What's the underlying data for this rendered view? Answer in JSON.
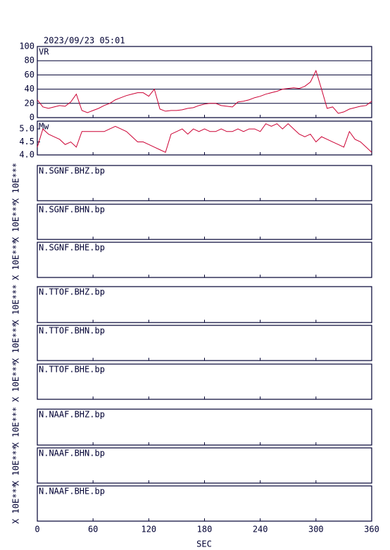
{
  "chart_data": {
    "type": "line",
    "title": "2023/09/23 05:01",
    "xlabel": "SEC",
    "color": "#cc0033",
    "xlim": [
      0,
      360
    ],
    "xticks": [
      0,
      60,
      120,
      180,
      240,
      300,
      360
    ],
    "x": [
      0,
      6,
      12,
      18,
      24,
      30,
      36,
      42,
      48,
      54,
      60,
      66,
      72,
      78,
      84,
      90,
      96,
      102,
      108,
      114,
      120,
      126,
      132,
      138,
      144,
      150,
      156,
      162,
      168,
      174,
      180,
      186,
      192,
      198,
      204,
      210,
      216,
      222,
      228,
      234,
      240,
      246,
      252,
      258,
      264,
      270,
      276,
      282,
      288,
      294,
      300,
      306,
      312,
      318,
      324,
      330,
      336,
      342,
      348,
      354,
      360
    ],
    "panels": [
      {
        "label": "VR",
        "ylim": [
          0,
          100
        ],
        "yticks": [
          0,
          20,
          40,
          60,
          80,
          100
        ],
        "grid": true,
        "values": [
          25,
          15,
          13,
          15,
          17,
          16,
          22,
          33,
          10,
          7,
          10,
          13,
          17,
          20,
          25,
          28,
          31,
          33,
          35,
          35,
          30,
          40,
          12,
          9,
          10,
          10,
          11,
          13,
          14,
          17,
          19,
          20,
          20,
          17,
          16,
          15,
          22,
          23,
          25,
          28,
          30,
          33,
          35,
          37,
          40,
          41,
          42,
          41,
          44,
          50,
          66,
          40,
          13,
          15,
          6,
          8,
          12,
          14,
          16,
          17,
          23
        ]
      },
      {
        "label": "Mw",
        "ylim": [
          4,
          5.3
        ],
        "yticks": [
          {
            "value": 4,
            "label": "4.0"
          },
          4.5,
          {
            "value": 5,
            "label": "5.0"
          }
        ],
        "grid": false,
        "values": [
          4.3,
          5.0,
          4.8,
          4.7,
          4.6,
          4.4,
          4.5,
          4.3,
          4.9,
          4.9,
          4.9,
          4.9,
          4.9,
          5.0,
          5.1,
          5.0,
          4.9,
          4.7,
          4.5,
          4.5,
          4.4,
          4.3,
          4.2,
          4.1,
          4.8,
          4.9,
          5.0,
          4.8,
          5.0,
          4.9,
          5.0,
          4.9,
          4.9,
          5.0,
          4.9,
          4.9,
          5.0,
          4.9,
          5.0,
          5.0,
          4.9,
          5.2,
          5.1,
          5.2,
          5.0,
          5.2,
          5.0,
          4.8,
          4.7,
          4.8,
          4.5,
          4.7,
          4.6,
          4.5,
          4.4,
          4.3,
          4.9,
          4.6,
          4.5,
          4.3,
          4.1
        ]
      },
      {
        "label": "N.SGNF.BHZ.bp",
        "ylabel": "X 10E***"
      },
      {
        "label": "N.SGNF.BHN.bp",
        "ylabel": "X 10E***"
      },
      {
        "label": "N.SGNF.BHE.bp",
        "ylabel": "X 10E***"
      },
      {
        "label": "N.TTOF.BHZ.bp",
        "ylabel": "X 10E***"
      },
      {
        "label": "N.TTOF.BHN.bp",
        "ylabel": "X 10E***"
      },
      {
        "label": "N.TTOF.BHE.bp",
        "ylabel": "X 10E***"
      },
      {
        "label": "N.NAAF.BHZ.bp",
        "ylabel": "X 10E***"
      },
      {
        "label": "N.NAAF.BHN.bp",
        "ylabel": "X 10E***"
      },
      {
        "label": "N.NAAF.BHE.bp",
        "ylabel": "X 10E***"
      }
    ]
  }
}
